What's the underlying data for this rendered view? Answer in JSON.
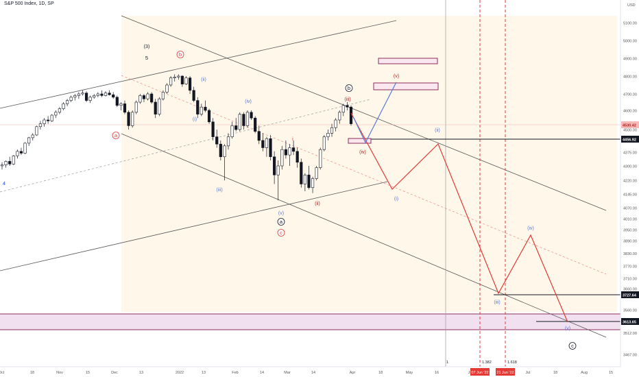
{
  "header": {
    "title": "S&P 500 Index, 1D, SP",
    "currency": "USD"
  },
  "chart_data": {
    "type": "candlestick",
    "ylim": [
      3420,
      5180
    ],
    "y_ticks": [
      5100,
      5000,
      4900,
      4800,
      4700,
      4600,
      4500,
      4450,
      4375,
      4300,
      4220,
      4145,
      4070,
      4010,
      3950,
      3890,
      3830,
      3770,
      3710,
      3660,
      3560,
      3512,
      3467
    ],
    "x_ticks": [
      "Oct",
      "18",
      "Nov",
      "15",
      "Dec",
      "13",
      "2022",
      "13",
      "Feb",
      "14",
      "Mar",
      "14",
      "Apr",
      "18",
      "May",
      "16",
      "Jun",
      "13",
      "Jul",
      "18",
      "Aug",
      "15"
    ],
    "price_labels": [
      {
        "value": 4530.42,
        "label": "4530.42",
        "style": "current"
      },
      {
        "value": 4456.92,
        "label": "4456.92",
        "style": "level"
      },
      {
        "value": 3727.64,
        "label": "3727.64",
        "style": "level"
      },
      {
        "value": 3613.65,
        "label": "3613.65",
        "style": "level"
      }
    ],
    "date_labels": [
      {
        "label": "07 Jun '22",
        "fib": "1.382"
      },
      {
        "label": "21 Jun '22",
        "fib": "1.618"
      }
    ],
    "vertical_marker": "1",
    "wave_labels": [
      {
        "text": "(3)",
        "color": "#131722",
        "circled": false
      },
      {
        "text": "5",
        "color": "#131722",
        "circled": false
      },
      {
        "text": "4",
        "color": "#1848cc",
        "circled": false
      },
      {
        "text": "b",
        "color": "#e53935",
        "circled": true
      },
      {
        "text": "a",
        "color": "#e53935",
        "circled": true
      },
      {
        "text": "(i)",
        "color": "#5b7ad6",
        "circled": false
      },
      {
        "text": "(ii)",
        "color": "#5b7ad6",
        "circled": false
      },
      {
        "text": "(iii)",
        "color": "#5b7ad6",
        "circled": false
      },
      {
        "text": "(iv)",
        "color": "#5b7ad6",
        "circled": false
      },
      {
        "text": "(v)",
        "color": "#5b7ad6",
        "circled": false
      },
      {
        "text": "a",
        "color": "#131722",
        "circled": true
      },
      {
        "text": "c",
        "color": "#e53935",
        "circled": true
      },
      {
        "text": "i",
        "color": "#e53935",
        "circled": false
      },
      {
        "text": "(ii)",
        "color": "#b71c1c",
        "circled": false
      },
      {
        "text": "(iii)",
        "color": "#b71c1c",
        "circled": false
      },
      {
        "text": "b",
        "color": "#131722",
        "circled": true
      },
      {
        "text": "(iv)",
        "color": "#b71c1c",
        "circled": false
      },
      {
        "text": "(v)",
        "color": "#b71c1c",
        "circled": false
      },
      {
        "text": "(ii)",
        "color": "#5b7ad6",
        "circled": false
      },
      {
        "text": "(i)",
        "color": "#5b7ad6",
        "circled": false
      },
      {
        "text": "(iii)",
        "color": "#5b7ad6",
        "circled": false
      },
      {
        "text": "(iv)",
        "color": "#5b7ad6",
        "circled": false
      },
      {
        "text": "(v)",
        "color": "#5b7ad6",
        "circled": false
      },
      {
        "text": "c",
        "color": "#131722",
        "circled": true
      }
    ],
    "candles": [
      [
        4300,
        4320,
        4280,
        4305
      ],
      [
        4305,
        4330,
        4290,
        4325
      ],
      [
        4325,
        4350,
        4300,
        4310
      ],
      [
        4310,
        4360,
        4305,
        4355
      ],
      [
        4355,
        4390,
        4340,
        4380
      ],
      [
        4380,
        4400,
        4360,
        4370
      ],
      [
        4370,
        4430,
        4365,
        4425
      ],
      [
        4425,
        4460,
        4410,
        4455
      ],
      [
        4455,
        4480,
        4440,
        4470
      ],
      [
        4470,
        4520,
        4465,
        4515
      ],
      [
        4515,
        4545,
        4500,
        4530
      ],
      [
        4530,
        4560,
        4515,
        4550
      ],
      [
        4550,
        4570,
        4530,
        4545
      ],
      [
        4545,
        4580,
        4540,
        4575
      ],
      [
        4575,
        4600,
        4560,
        4590
      ],
      [
        4590,
        4620,
        4580,
        4610
      ],
      [
        4610,
        4650,
        4600,
        4640
      ],
      [
        4640,
        4670,
        4625,
        4660
      ],
      [
        4660,
        4690,
        4650,
        4680
      ],
      [
        4680,
        4700,
        4660,
        4690
      ],
      [
        4690,
        4710,
        4670,
        4700
      ],
      [
        4700,
        4720,
        4690,
        4705
      ],
      [
        4705,
        4715,
        4650,
        4660
      ],
      [
        4660,
        4690,
        4645,
        4680
      ],
      [
        4680,
        4700,
        4670,
        4690
      ],
      [
        4690,
        4710,
        4680,
        4700
      ],
      [
        4700,
        4720,
        4680,
        4690
      ],
      [
        4690,
        4715,
        4685,
        4705
      ],
      [
        4705,
        4720,
        4690,
        4695
      ],
      [
        4695,
        4710,
        4670,
        4680
      ],
      [
        4680,
        4690,
        4620,
        4630
      ],
      [
        4630,
        4650,
        4600,
        4640
      ],
      [
        4640,
        4660,
        4580,
        4590
      ],
      [
        4590,
        4600,
        4500,
        4520
      ],
      [
        4520,
        4600,
        4510,
        4590
      ],
      [
        4590,
        4660,
        4580,
        4650
      ],
      [
        4650,
        4700,
        4640,
        4690
      ],
      [
        4690,
        4700,
        4650,
        4670
      ],
      [
        4670,
        4710,
        4660,
        4700
      ],
      [
        4700,
        4710,
        4640,
        4650
      ],
      [
        4650,
        4670,
        4560,
        4580
      ],
      [
        4580,
        4680,
        4570,
        4670
      ],
      [
        4670,
        4720,
        4660,
        4710
      ],
      [
        4710,
        4760,
        4700,
        4750
      ],
      [
        4750,
        4800,
        4740,
        4790
      ],
      [
        4790,
        4810,
        4770,
        4795
      ],
      [
        4795,
        4810,
        4780,
        4800
      ],
      [
        4800,
        4805,
        4740,
        4755
      ],
      [
        4755,
        4800,
        4750,
        4790
      ],
      [
        4790,
        4800,
        4700,
        4720
      ],
      [
        4720,
        4740,
        4650,
        4660
      ],
      [
        4660,
        4680,
        4560,
        4580
      ],
      [
        4580,
        4640,
        4570,
        4620
      ],
      [
        4620,
        4660,
        4590,
        4600
      ],
      [
        4600,
        4610,
        4530,
        4540
      ],
      [
        4540,
        4560,
        4440,
        4460
      ],
      [
        4460,
        4500,
        4400,
        4420
      ],
      [
        4420,
        4440,
        4330,
        4350
      ],
      [
        4350,
        4420,
        4220,
        4410
      ],
      [
        4410,
        4480,
        4390,
        4460
      ],
      [
        4460,
        4540,
        4450,
        4520
      ],
      [
        4520,
        4560,
        4490,
        4500
      ],
      [
        4500,
        4590,
        4490,
        4580
      ],
      [
        4580,
        4590,
        4500,
        4520
      ],
      [
        4520,
        4600,
        4510,
        4590
      ],
      [
        4590,
        4600,
        4550,
        4560
      ],
      [
        4560,
        4570,
        4480,
        4490
      ],
      [
        4490,
        4520,
        4420,
        4440
      ],
      [
        4440,
        4480,
        4380,
        4400
      ],
      [
        4400,
        4460,
        4350,
        4450
      ],
      [
        4450,
        4470,
        4330,
        4350
      ],
      [
        4350,
        4380,
        4200,
        4250
      ],
      [
        4250,
        4330,
        4110,
        4300
      ],
      [
        4300,
        4410,
        4280,
        4390
      ],
      [
        4390,
        4440,
        4340,
        4360
      ],
      [
        4360,
        4420,
        4300,
        4400
      ],
      [
        4400,
        4440,
        4360,
        4380
      ],
      [
        4380,
        4400,
        4290,
        4320
      ],
      [
        4320,
        4340,
        4180,
        4200
      ],
      [
        4200,
        4260,
        4160,
        4250
      ],
      [
        4250,
        4300,
        4170,
        4180
      ],
      [
        4180,
        4240,
        4150,
        4230
      ],
      [
        4230,
        4300,
        4220,
        4290
      ],
      [
        4290,
        4400,
        4280,
        4390
      ],
      [
        4390,
        4470,
        4380,
        4460
      ],
      [
        4460,
        4500,
        4440,
        4480
      ],
      [
        4480,
        4530,
        4460,
        4510
      ],
      [
        4510,
        4560,
        4490,
        4550
      ],
      [
        4550,
        4600,
        4530,
        4590
      ],
      [
        4590,
        4640,
        4570,
        4630
      ],
      [
        4630,
        4650,
        4600,
        4620
      ],
      [
        4620,
        4630,
        4520,
        4530
      ]
    ],
    "projections": [
      {
        "name": "",
        "color": "#e53935",
        "points": [
          [
            "2022-03-29",
            4630
          ],
          [
            "2022-04-20",
            4220
          ],
          [
            "2022-05-16",
            4456
          ],
          [
            "2022-06-07",
            3727
          ],
          [
            "2022-07-01",
            4000
          ],
          [
            "2022-07-28",
            3600
          ]
        ]
      },
      {
        "name": "",
        "color": "#5b7ad6",
        "points": [
          [
            "2022-03-31",
            4600
          ],
          [
            "2022-04-04",
            4480
          ],
          [
            "2022-04-29",
            4770
          ]
        ]
      }
    ]
  }
}
